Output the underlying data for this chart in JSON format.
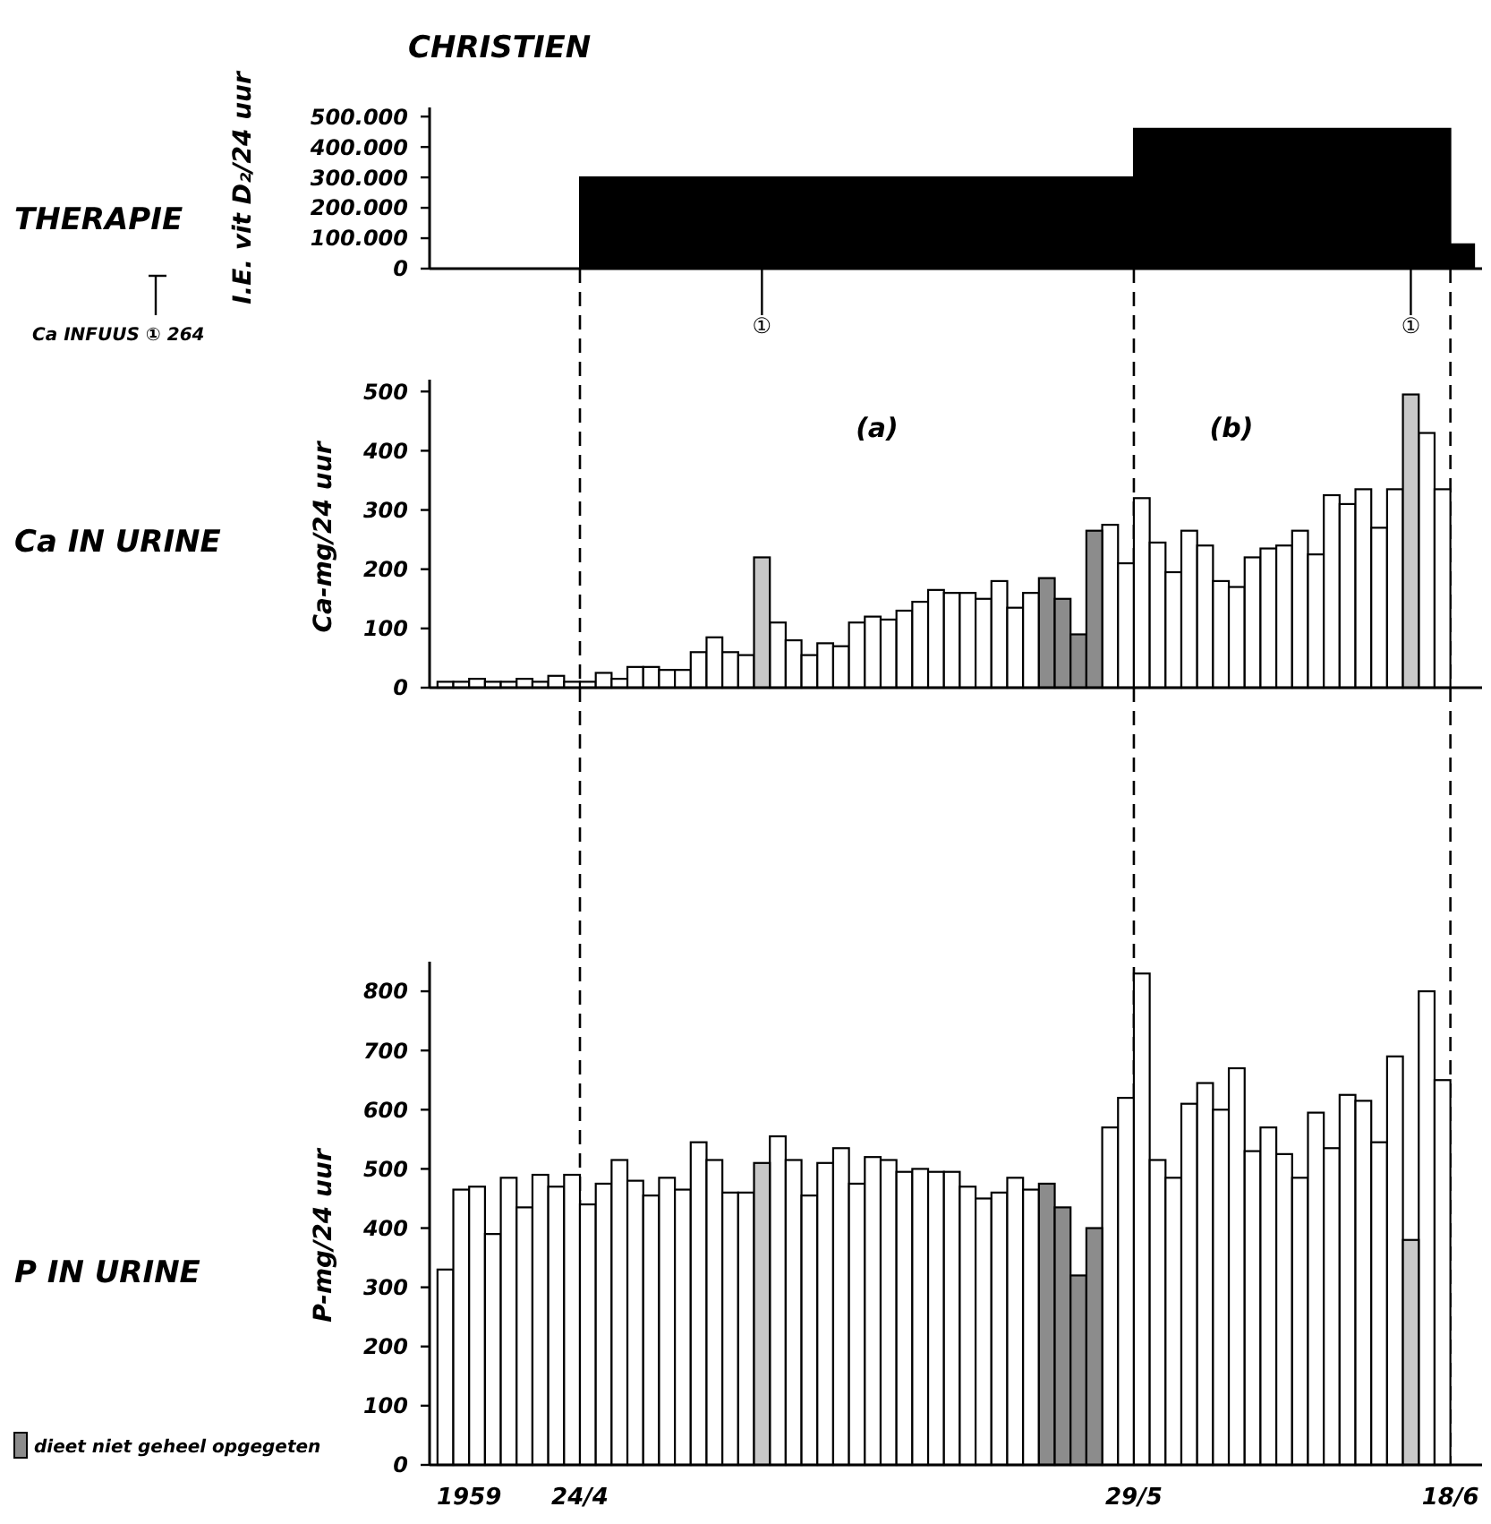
{
  "chart_data": [
    {
      "type": "area",
      "title": "CHRISTIEN",
      "subtitle": "THERAPIE",
      "ylabel": "I.E. vit D₂/24 uur",
      "xlim": [
        "1959-04-14T12:00",
        "1959-06-20"
      ],
      "ylim": [
        0,
        530000
      ],
      "yticks": [
        0,
        {
          "value": 100000,
          "label": "100.000"
        },
        {
          "value": 200000,
          "label": "200.000"
        },
        {
          "value": 300000,
          "label": "300.000"
        },
        {
          "value": 400000,
          "label": "400.000"
        },
        {
          "value": 500000,
          "label": "500.000"
        }
      ],
      "tick_labels": "y",
      "series": [
        {
          "color": "#000000",
          "x": [
            "1959-04-24",
            "1959-05-29",
            "1959-06-18",
            "1959-06-19T12:00"
          ],
          "values": [
            300000,
            460000,
            80000,
            80000
          ]
        }
      ],
      "annotations": [
        {
          "text": "①",
          "x": "1959-05-05T12:00",
          "y": 0
        },
        {
          "text": "①",
          "x": "1959-06-15T12:00",
          "y": 0
        },
        "Ca INFUUS ① 264"
      ]
    },
    {
      "type": "bar",
      "title": "Ca IN URINE",
      "ylabel": "Ca-mg/24 uur",
      "xlim": [
        "1959-04-14T12:00",
        "1959-06-20"
      ],
      "ylim": [
        0,
        520
      ],
      "yticks": [
        0,
        100,
        200,
        300,
        400,
        500
      ],
      "tick_labels": "y",
      "series": [
        {
          "color": "#ffffff",
          "x": [
            "1959-04-15",
            "1959-04-16",
            "1959-04-17",
            "1959-04-18",
            "1959-04-19",
            "1959-04-20",
            "1959-04-21",
            "1959-04-22",
            "1959-04-23",
            "1959-04-24",
            "1959-04-25",
            "1959-04-26",
            "1959-04-27",
            "1959-04-28",
            "1959-04-29",
            "1959-04-30",
            "1959-05-01",
            "1959-05-02",
            "1959-05-03",
            "1959-05-04",
            "1959-05-06",
            "1959-05-07",
            "1959-05-08",
            "1959-05-09",
            "1959-05-10",
            "1959-05-11",
            "1959-05-12",
            "1959-05-13",
            "1959-05-14",
            "1959-05-15",
            "1959-05-16",
            "1959-05-17",
            "1959-05-18",
            "1959-05-19",
            "1959-05-20",
            "1959-05-21",
            "1959-05-22",
            "1959-05-27",
            "1959-05-28",
            "1959-05-29",
            "1959-05-30",
            "1959-05-31",
            "1959-06-01",
            "1959-06-02",
            "1959-06-03",
            "1959-06-04",
            "1959-06-05",
            "1959-06-06",
            "1959-06-07",
            "1959-06-08",
            "1959-06-09",
            "1959-06-10",
            "1959-06-11",
            "1959-06-12",
            "1959-06-13",
            "1959-06-14",
            "1959-06-16",
            "1959-06-17"
          ],
          "values": [
            10,
            10,
            15,
            10,
            10,
            15,
            10,
            20,
            10,
            10,
            25,
            15,
            35,
            35,
            30,
            30,
            60,
            85,
            60,
            55,
            110,
            80,
            55,
            75,
            70,
            110,
            120,
            115,
            130,
            145,
            165,
            160,
            160,
            150,
            180,
            135,
            160,
            275,
            210,
            320,
            245,
            195,
            265,
            240,
            180,
            170,
            220,
            235,
            240,
            265,
            225,
            325,
            310,
            335,
            270,
            335,
            430,
            335
          ]
        },
        {
          "color": "#8c8c8c",
          "x": [
            "1959-05-23",
            "1959-05-24",
            "1959-05-25",
            "1959-05-26"
          ],
          "values": [
            185,
            150,
            90,
            265
          ]
        },
        {
          "color": "#c8c8c8",
          "x": [
            "1959-05-05",
            "1959-06-15"
          ],
          "values": [
            220,
            495
          ]
        }
      ],
      "ref_lines": [
        {
          "axis": "x",
          "value": "1959-04-24",
          "line_style": "dashed"
        },
        {
          "axis": "x",
          "value": "1959-05-29",
          "line_style": "dashed"
        },
        {
          "axis": "x",
          "value": "1959-06-18",
          "line_style": "dashed"
        }
      ],
      "annotations": [
        "(a)",
        "(b)"
      ]
    },
    {
      "type": "bar",
      "title": "P IN URINE",
      "ylabel": "P-mg/24 uur",
      "xlim": [
        "1959-04-14T12:00",
        "1959-06-20"
      ],
      "ylim": [
        0,
        850
      ],
      "yticks": [
        0,
        100,
        200,
        300,
        400,
        500,
        600,
        700,
        800
      ],
      "xticks": [
        {
          "value": "1959-04-17",
          "label": "1959"
        },
        {
          "value": "1959-04-24",
          "label": "24/4"
        },
        {
          "value": "1959-05-29",
          "label": "29/5"
        },
        {
          "value": "1959-06-18",
          "label": "18/6"
        }
      ],
      "legend": "bottom left",
      "series": [
        {
          "color": "#ffffff",
          "x": [
            "1959-04-15",
            "1959-04-16",
            "1959-04-17",
            "1959-04-18",
            "1959-04-19",
            "1959-04-20",
            "1959-04-21",
            "1959-04-22",
            "1959-04-23",
            "1959-04-24",
            "1959-04-25",
            "1959-04-26",
            "1959-04-27",
            "1959-04-28",
            "1959-04-29",
            "1959-04-30",
            "1959-05-01",
            "1959-05-02",
            "1959-05-03",
            "1959-05-04",
            "1959-05-06",
            "1959-05-07",
            "1959-05-08",
            "1959-05-09",
            "1959-05-10",
            "1959-05-11",
            "1959-05-12",
            "1959-05-13",
            "1959-05-14",
            "1959-05-15",
            "1959-05-16",
            "1959-05-17",
            "1959-05-18",
            "1959-05-19",
            "1959-05-20",
            "1959-05-21",
            "1959-05-22",
            "1959-05-27",
            "1959-05-28",
            "1959-05-29",
            "1959-05-30",
            "1959-05-31",
            "1959-06-01",
            "1959-06-02",
            "1959-06-03",
            "1959-06-04",
            "1959-06-05",
            "1959-06-06",
            "1959-06-07",
            "1959-06-08",
            "1959-06-09",
            "1959-06-10",
            "1959-06-11",
            "1959-06-12",
            "1959-06-13",
            "1959-06-14",
            "1959-06-16",
            "1959-06-17"
          ],
          "values": [
            330,
            465,
            470,
            390,
            485,
            435,
            490,
            470,
            490,
            440,
            475,
            515,
            480,
            455,
            485,
            465,
            545,
            515,
            460,
            460,
            555,
            515,
            455,
            510,
            535,
            475,
            520,
            515,
            495,
            500,
            495,
            495,
            470,
            450,
            460,
            485,
            465,
            570,
            620,
            830,
            515,
            485,
            610,
            645,
            600,
            670,
            530,
            570,
            525,
            485,
            595,
            535,
            625,
            615,
            545,
            690,
            800,
            650
          ]
        },
        {
          "name": "dieet niet geheel opgegeten",
          "color": "#8c8c8c",
          "x": [
            "1959-05-23",
            "1959-05-24",
            "1959-05-25",
            "1959-05-26"
          ],
          "values": [
            475,
            435,
            320,
            400
          ]
        },
        {
          "color": "#c8c8c8",
          "x": [
            "1959-05-05",
            "1959-06-15"
          ],
          "values": [
            510,
            380
          ]
        }
      ],
      "ref_lines": [
        {
          "axis": "x",
          "value": "1959-04-24",
          "line_style": "dashed"
        },
        {
          "axis": "x",
          "value": "1959-05-29",
          "line_style": "dashed"
        },
        {
          "axis": "x",
          "value": "1959-06-18",
          "line_style": "dashed"
        }
      ]
    }
  ]
}
